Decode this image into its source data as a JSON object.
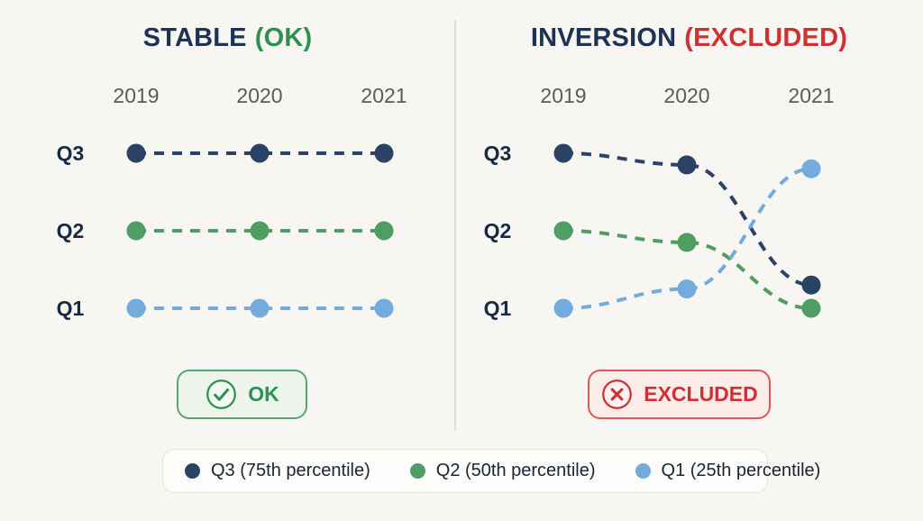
{
  "colors": {
    "background": "#f7f6f3",
    "title_navy": "#1d3354",
    "axis_gray": "#5b5b5b",
    "q_label_navy": "#172a42",
    "series_q3_navy": "#2a4263",
    "series_q2_green": "#4f9d62",
    "series_q1_blue": "#74abdd",
    "ok_green": "#2e9150",
    "excluded_red": "#d03030",
    "divider_gray": "#deddd9"
  },
  "panels": [
    {
      "title": "STABLE",
      "suffix": "(OK)",
      "suffix_color": "#2e9150",
      "badge": {
        "label": "OK",
        "icon": "check-circle",
        "color": "#2e9150",
        "border": "#5aa56d",
        "background": "#ecf4ec"
      }
    },
    {
      "title": "INVERSION",
      "suffix": "(EXCLUDED)",
      "suffix_color": "#d03030",
      "badge": {
        "label": "EXCLUDED",
        "icon": "x-circle",
        "color": "#d03030",
        "border": "#db5a55",
        "background": "#fcecea"
      }
    }
  ],
  "chart_data": [
    {
      "type": "line",
      "title": "STABLE (OK)",
      "x": [
        "2019",
        "2020",
        "2021"
      ],
      "y_axis": {
        "categories": [
          "Q3",
          "Q2",
          "Q1"
        ],
        "top_to_bottom": true,
        "levels": {
          "Q3": 3,
          "Q2": 2,
          "Q1": 1
        }
      },
      "series": [
        {
          "name": "Q3",
          "color": "#2a4263",
          "values": [
            3,
            3,
            3
          ]
        },
        {
          "name": "Q2",
          "color": "#4f9d62",
          "values": [
            2,
            2,
            2
          ]
        },
        {
          "name": "Q1",
          "color": "#74abdd",
          "values": [
            1,
            1,
            1
          ]
        }
      ],
      "style": {
        "dashed": true,
        "marker": "circle",
        "grid": false
      }
    },
    {
      "type": "line",
      "title": "INVERSION (EXCLUDED)",
      "x": [
        "2019",
        "2020",
        "2021"
      ],
      "y_axis": {
        "categories": [
          "Q3",
          "Q2",
          "Q1"
        ],
        "top_to_bottom": true,
        "levels": {
          "Q3": 3,
          "Q2": 2,
          "Q1": 1
        }
      },
      "series": [
        {
          "name": "Q3",
          "color": "#2a4263",
          "values": [
            3.0,
            2.85,
            1.3
          ]
        },
        {
          "name": "Q2",
          "color": "#4f9d62",
          "values": [
            2.0,
            1.85,
            1.0
          ]
        },
        {
          "name": "Q1",
          "color": "#74abdd",
          "values": [
            1.0,
            1.25,
            2.8
          ]
        }
      ],
      "style": {
        "dashed": true,
        "marker": "circle",
        "grid": false
      }
    }
  ],
  "legend": {
    "items": [
      {
        "label": "Q3 (75th percentile)",
        "color": "#2a4263"
      },
      {
        "label": "Q2 (50th percentile)",
        "color": "#4f9d62"
      },
      {
        "label": "Q1 (25th percentile)",
        "color": "#74abdd"
      }
    ]
  }
}
